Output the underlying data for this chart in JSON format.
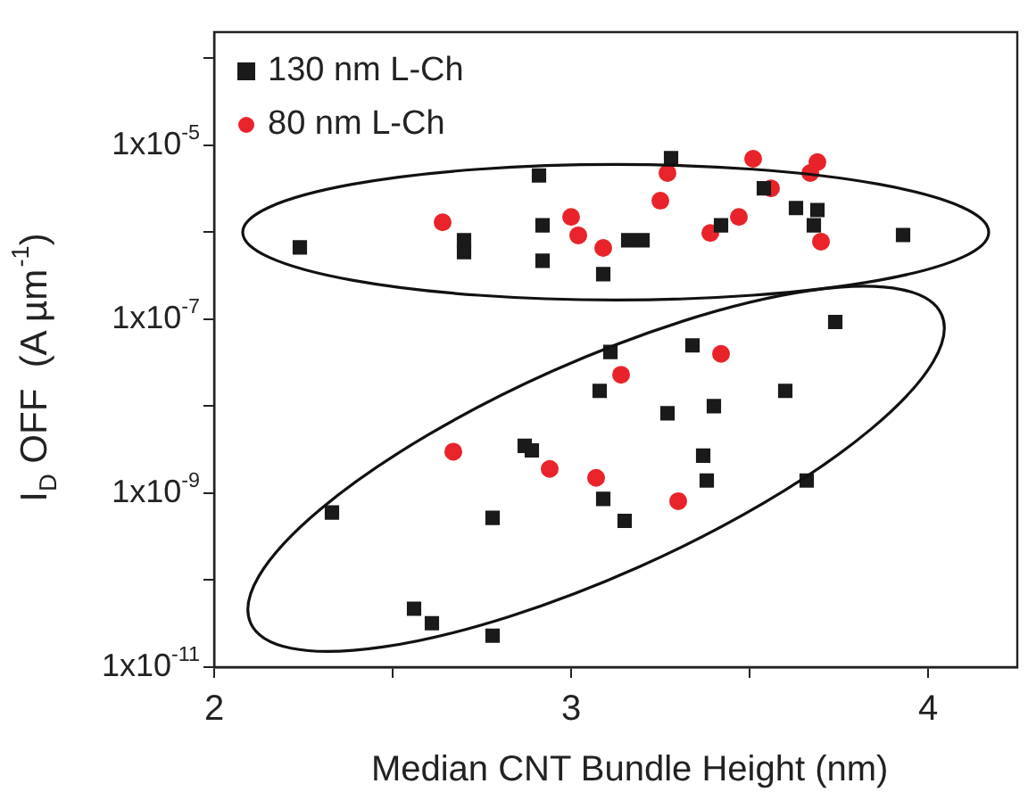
{
  "chart_data": {
    "type": "scatter",
    "xlabel": "Median CNT Bundle Height (nm)",
    "ylabel": "I$_{D}$ OFF  (A µm$^{-1}$)",
    "log": "y",
    "xlim": [
      2,
      4.25
    ],
    "ylim": [
      1e-11,
      0.0002
    ],
    "xticks": [
      2,
      {
        "value": 2.5,
        "label": null
      },
      3,
      {
        "value": 3.5,
        "label": null
      },
      4
    ],
    "yticks": [
      {
        "value": 1e-11,
        "label": "1x10$^{-11}$"
      },
      {
        "value": 1e-10,
        "label": null
      },
      {
        "value": 1e-09,
        "label": "1x10$^{-9}$"
      },
      {
        "value": 1e-08,
        "label": null
      },
      {
        "value": 1e-07,
        "label": "1x10$^{-7}$"
      },
      {
        "value": 1e-06,
        "label": null
      },
      {
        "value": 1e-05,
        "label": "1x10$^{-5}$"
      },
      {
        "value": 0.0001,
        "label": null
      }
    ],
    "grid": false,
    "legend": "top left",
    "series": [
      {
        "name": "130 nm L-Ch",
        "color": "#1a1a1a",
        "marker": "square",
        "x": [
          2.24,
          2.91,
          2.7,
          2.7,
          2.92,
          2.92,
          3.09,
          3.16,
          3.2,
          3.28,
          3.42,
          3.54,
          3.63,
          3.69,
          3.68,
          3.93,
          3.74,
          3.11,
          3.34,
          3.08,
          3.6,
          3.27,
          3.4,
          2.87,
          2.89,
          3.37,
          3.38,
          3.66,
          3.09,
          3.15,
          2.78,
          2.33,
          2.56,
          2.61,
          2.78
        ],
        "values": [
          6.7e-07,
          4.5e-06,
          8.1e-07,
          5.9e-07,
          1.2e-06,
          4.7e-07,
          3.3e-07,
          8.1e-07,
          8.1e-07,
          7.1e-06,
          1.2e-06,
          3.2e-06,
          1.9e-06,
          1.8e-06,
          1.2e-06,
          9.3e-07,
          9.3e-08,
          4.2e-08,
          5e-08,
          1.5e-08,
          1.5e-08,
          8.3e-09,
          1e-08,
          3.5e-09,
          3.1e-09,
          2.7e-09,
          1.4e-09,
          1.4e-09,
          8.6e-10,
          4.8e-10,
          5.2e-10,
          6e-10,
          4.7e-11,
          3.2e-11,
          2.3e-11
        ]
      },
      {
        "name": "80 nm L-Ch",
        "color": "#e8242a",
        "marker": "circle",
        "x": [
          2.64,
          3.0,
          3.02,
          3.09,
          3.25,
          3.27,
          3.39,
          3.47,
          3.51,
          3.56,
          3.67,
          3.69,
          3.7,
          3.42,
          3.14,
          2.67,
          2.94,
          3.07,
          3.3
        ],
        "values": [
          1.3e-06,
          1.5e-06,
          9.2e-07,
          6.6e-07,
          2.3e-06,
          4.8e-06,
          9.8e-07,
          1.5e-06,
          7e-06,
          3.2e-06,
          4.8e-06,
          6.4e-06,
          7.8e-07,
          4e-08,
          2.3e-08,
          3e-09,
          1.9e-09,
          1.5e-09,
          8.1e-10
        ]
      }
    ]
  }
}
